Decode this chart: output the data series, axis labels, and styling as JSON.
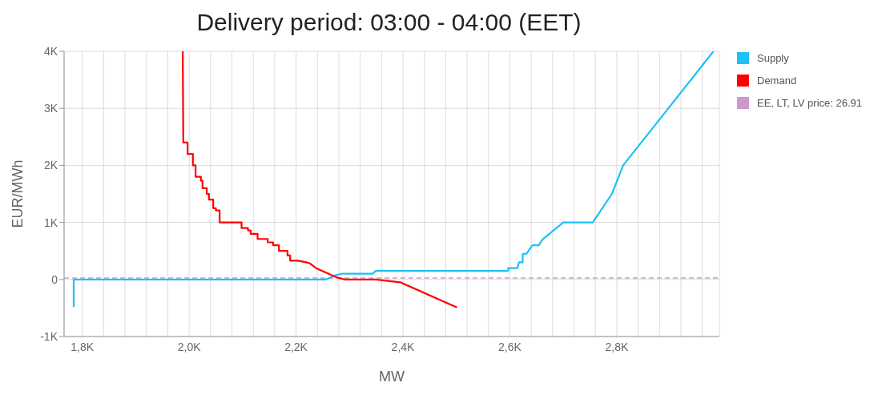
{
  "chart_data": {
    "type": "line",
    "title": "Delivery period: 03:00 - 04:00 (EET)",
    "xlabel": "MW",
    "ylabel": "EUR/MWh",
    "xlim": [
      1766,
      2992
    ],
    "xticks": [
      {
        "value": 1800,
        "label": "1,8K"
      },
      {
        "value": 1840,
        "label": null
      },
      {
        "value": 1880,
        "label": null
      },
      {
        "value": 1920,
        "label": null
      },
      {
        "value": 1960,
        "label": null
      },
      {
        "value": 2000,
        "label": "2,0K"
      },
      {
        "value": 2040,
        "label": null
      },
      {
        "value": 2080,
        "label": null
      },
      {
        "value": 2120,
        "label": null
      },
      {
        "value": 2160,
        "label": null
      },
      {
        "value": 2200,
        "label": "2,2K"
      },
      {
        "value": 2240,
        "label": null
      },
      {
        "value": 2280,
        "label": null
      },
      {
        "value": 2320,
        "label": null
      },
      {
        "value": 2360,
        "label": null
      },
      {
        "value": 2400,
        "label": "2,4K"
      },
      {
        "value": 2440,
        "label": null
      },
      {
        "value": 2480,
        "label": null
      },
      {
        "value": 2520,
        "label": null
      },
      {
        "value": 2560,
        "label": null
      },
      {
        "value": 2600,
        "label": "2,6K"
      },
      {
        "value": 2640,
        "label": null
      },
      {
        "value": 2680,
        "label": null
      },
      {
        "value": 2720,
        "label": null
      },
      {
        "value": 2760,
        "label": null
      },
      {
        "value": 2800,
        "label": "2,8K"
      },
      {
        "value": 2840,
        "label": null
      },
      {
        "value": 2880,
        "label": null
      },
      {
        "value": 2920,
        "label": null
      },
      {
        "value": 2960,
        "label": null
      }
    ],
    "ylim": [
      -1000,
      4000
    ],
    "yticks": [
      {
        "value": -1000,
        "label": "-1K"
      },
      0,
      {
        "value": 1000,
        "label": "1K"
      },
      {
        "value": 2000,
        "label": "2K"
      },
      {
        "value": 3000,
        "label": "3K"
      },
      {
        "value": 4000,
        "label": "4K"
      }
    ],
    "grid": true,
    "legend": "top right",
    "marker": "none",
    "line_style": "solid",
    "series": [
      {
        "name": "Supply",
        "color": "#1ec0f5",
        "x": [
          1784,
          1784,
          2256,
          2276,
          2286,
          2343,
          2349,
          2377,
          2597,
          2597,
          2614,
          2617,
          2624,
          2624,
          2631,
          2642,
          2654,
          2661,
          2700,
          2755,
          2791,
          2812,
          2981
        ],
        "values": [
          -480,
          0,
          0,
          80,
          100,
          100,
          150,
          150,
          150,
          200,
          200,
          300,
          300,
          450,
          450,
          600,
          600,
          700,
          1000,
          1000,
          1500,
          2000,
          4000
        ]
      },
      {
        "name": "Demand",
        "color": "#ff0000",
        "x": [
          1988,
          1989,
          1997,
          1997,
          2007,
          2007,
          2012,
          2012,
          2022,
          2022,
          2025,
          2025,
          2033,
          2033,
          2037,
          2037,
          2045,
          2045,
          2050,
          2050,
          2057,
          2057,
          2098,
          2098,
          2110,
          2110,
          2115,
          2115,
          2128,
          2128,
          2147,
          2147,
          2157,
          2157,
          2168,
          2168,
          2184,
          2184,
          2189,
          2189,
          2204,
          2224,
          2224,
          2229,
          2229,
          2239,
          2239,
          2251,
          2251,
          2265,
          2265,
          2278,
          2278,
          2291,
          2349,
          2395,
          2501
        ],
        "values": [
          4000,
          2400,
          2400,
          2200,
          2200,
          2000,
          2000,
          1800,
          1800,
          1730,
          1730,
          1600,
          1600,
          1500,
          1500,
          1400,
          1400,
          1250,
          1250,
          1210,
          1210,
          1000,
          1000,
          900,
          900,
          860,
          860,
          800,
          800,
          710,
          710,
          650,
          650,
          600,
          600,
          500,
          500,
          420,
          420,
          330,
          330,
          290,
          290,
          260,
          260,
          190,
          190,
          140,
          140,
          80,
          80,
          30,
          30,
          0,
          0,
          -50,
          -490
        ]
      }
    ],
    "ref_lines": [
      {
        "axis": "y",
        "value": 26.91,
        "label": "EE, LT, LV price: 26.91",
        "color": "#cc99cc",
        "line_style": "dashed"
      }
    ]
  }
}
